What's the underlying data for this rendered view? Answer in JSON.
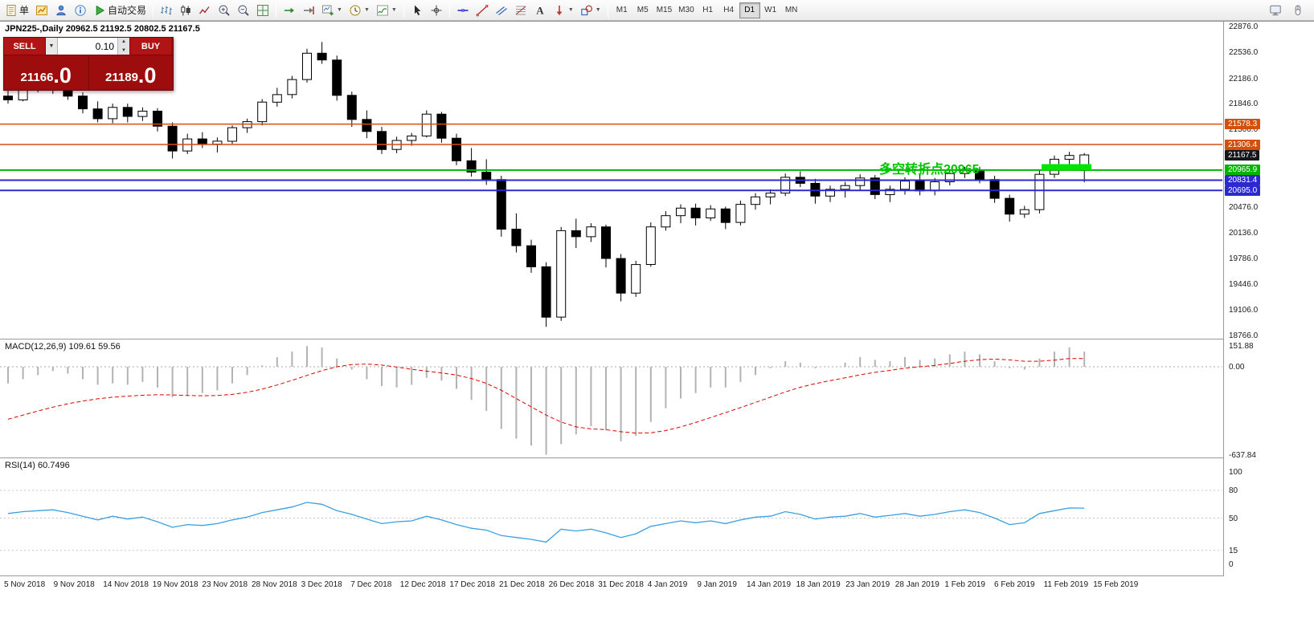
{
  "toolbar": {
    "groups": [
      {
        "name": "standard",
        "items": [
          {
            "name": "new-order",
            "icon": "doc",
            "label": "单"
          },
          {
            "name": "market-watch",
            "icon": "chart"
          },
          {
            "name": "navigator",
            "icon": "person"
          },
          {
            "name": "data-window",
            "icon": "info"
          },
          {
            "name": "autotrading",
            "icon": "play",
            "label": "自动交易"
          }
        ]
      },
      {
        "name": "chart-types",
        "items": [
          {
            "name": "bar-chart",
            "icon": "bars"
          },
          {
            "name": "candlestick-chart",
            "icon": "candles"
          },
          {
            "name": "line-chart",
            "icon": "linechart"
          },
          {
            "name": "zoom-in",
            "icon": "zoom-in"
          },
          {
            "name": "zoom-out",
            "icon": "zoom-out"
          },
          {
            "name": "tile-windows",
            "icon": "tile"
          }
        ]
      },
      {
        "name": "chart-tools",
        "items": [
          {
            "name": "auto-scroll",
            "icon": "arrange"
          },
          {
            "name": "chart-shift",
            "icon": "cascade"
          },
          {
            "name": "new-chart",
            "icon": "new-chart",
            "dropdown": true
          },
          {
            "name": "period-selector",
            "icon": "clock",
            "dropdown": true
          },
          {
            "name": "indicators-list",
            "icon": "indicator",
            "dropdown": true
          }
        ]
      },
      {
        "name": "pointer",
        "items": [
          {
            "name": "cursor",
            "icon": "cursor"
          },
          {
            "name": "crosshair",
            "icon": "crosshair"
          }
        ]
      },
      {
        "name": "line-studies",
        "items": [
          {
            "name": "horizontal-line",
            "icon": "hline"
          },
          {
            "name": "trendline",
            "icon": "trendline"
          },
          {
            "name": "equidistant-channel",
            "icon": "channel"
          },
          {
            "name": "fibonacci-retracement",
            "icon": "fibo"
          },
          {
            "name": "text-label",
            "icon": "text"
          },
          {
            "name": "arrow-objects",
            "icon": "arrow",
            "dropdown": true
          },
          {
            "name": "shape-objects",
            "icon": "shapes",
            "dropdown": true
          }
        ]
      }
    ],
    "timeframes": {
      "options": [
        "M1",
        "M5",
        "M15",
        "M30",
        "H1",
        "H4",
        "D1",
        "W1",
        "MN"
      ],
      "active": "D1"
    },
    "right_items": [
      {
        "name": "terminal",
        "icon": "monitor"
      },
      {
        "name": "mouse-settings",
        "icon": "hand"
      }
    ]
  },
  "trade_panel": {
    "sell_label": "SELL",
    "buy_label": "BUY",
    "lot": "0.10",
    "sell_price": "21166.0",
    "buy_price": "21189.0"
  },
  "chart": {
    "title": "JPN225-,Daily 20962.5 21192.5 20802.5 21167.5",
    "annotation": {
      "text": "多空转折点20965",
      "color": "#00c400"
    },
    "levels": [
      {
        "label": "21578.3",
        "value": 21578.3,
        "color": "#d4500a",
        "line": true,
        "width": 1.5
      },
      {
        "label": "21306.4",
        "value": 21306.4,
        "color": "#d4500a",
        "line": true,
        "width": 1.5
      },
      {
        "label": "21167.5",
        "value": 21167.5,
        "color": "#15161a",
        "line": false
      },
      {
        "label": "20965.9",
        "value": 20965.9,
        "color": "#00b400",
        "line": true,
        "width": 2
      },
      {
        "label": "20831.4",
        "value": 20831.4,
        "color": "#2a2ad0",
        "line": true,
        "width": 2
      },
      {
        "label": "20695.0",
        "value": 20695.0,
        "color": "#2a2ad0",
        "line": true,
        "width": 2
      }
    ],
    "highlight": {
      "price_top": 21045,
      "price_bottom": 20966,
      "color": "#00e400"
    }
  },
  "price_axis": {
    "ticks": [
      "22876.0",
      "22536.0",
      "22186.0",
      "21846.0",
      "21506.0",
      "20476.0",
      "20136.0",
      "19786.0",
      "19446.0",
      "19106.0",
      "18766.0"
    ]
  },
  "macd": {
    "label": "MACD(12,26,9) 109.61 59.56",
    "ticks": [
      {
        "v": 151.88,
        "label": "151.88"
      },
      {
        "v": 0,
        "label": "0.00"
      },
      {
        "v": -637.84,
        "label": "-637.84"
      }
    ]
  },
  "rsi": {
    "label": "RSI(14) 60.7496",
    "ticks": [
      {
        "v": 100,
        "label": "100"
      },
      {
        "v": 80,
        "label": "80"
      },
      {
        "v": 50,
        "label": "50"
      },
      {
        "v": 15,
        "label": "15"
      },
      {
        "v": 0,
        "label": "0"
      }
    ]
  },
  "time_axis": [
    "5 Nov 2018",
    "9 Nov 2018",
    "14 Nov 2018",
    "19 Nov 2018",
    "23 Nov 2018",
    "28 Nov 2018",
    "3 Dec 2018",
    "7 Dec 2018",
    "12 Dec 2018",
    "17 Dec 2018",
    "21 Dec 2018",
    "26 Dec 2018",
    "31 Dec 2018",
    "4 Jan 2019",
    "9 Jan 2019",
    "14 Jan 2019",
    "18 Jan 2019",
    "23 Jan 2019",
    "28 Jan 2019",
    "1 Feb 2019",
    "6 Feb 2019",
    "11 Feb 2019",
    "15 Feb 2019"
  ],
  "chart_data": [
    {
      "type": "candlestick",
      "title": "JPN225- Daily",
      "ylim": [
        18766,
        22876
      ],
      "o": [
        21950,
        21900,
        22080,
        22060,
        22130,
        21950,
        21780,
        21650,
        21800,
        21680,
        21750,
        21550,
        21220,
        21380,
        21310,
        21350,
        21530,
        21610,
        21870,
        21970,
        22170,
        22520,
        22430,
        21960,
        21640,
        21480,
        21240,
        21360,
        21420,
        21710,
        21390,
        21090,
        20940,
        20840,
        20180,
        19960,
        19680,
        19010,
        20160,
        20080,
        20210,
        19790,
        19330,
        19710,
        20210,
        20360,
        20460,
        20330,
        20450,
        20270,
        20510,
        20610,
        20660,
        20870,
        20790,
        20620,
        20710,
        20760,
        20860,
        20640,
        20710,
        20820,
        20690,
        20810,
        20920,
        20960,
        20840,
        20590,
        20380,
        20440,
        20910,
        21110,
        20962.5
      ],
      "h": [
        22020,
        22120,
        22180,
        22190,
        22170,
        22000,
        21880,
        21850,
        21850,
        21800,
        21790,
        21600,
        21450,
        21470,
        21400,
        21560,
        21650,
        21910,
        22060,
        22220,
        22580,
        22670,
        22490,
        22010,
        21760,
        21540,
        21410,
        21460,
        21760,
        21740,
        21450,
        21260,
        21110,
        20890,
        20390,
        20040,
        19740,
        20210,
        20320,
        20260,
        20240,
        19850,
        19760,
        20270,
        20420,
        20510,
        20520,
        20500,
        20480,
        20560,
        20660,
        20710,
        20920,
        20950,
        20850,
        20760,
        20810,
        20910,
        20900,
        20760,
        20870,
        20910,
        20860,
        20970,
        21010,
        21010,
        20890,
        20640,
        20490,
        20960,
        21160,
        21210,
        21192.5
      ],
      "l": [
        21850,
        21880,
        22000,
        21980,
        21900,
        21720,
        21600,
        21590,
        21600,
        21620,
        21480,
        21120,
        21180,
        21260,
        21200,
        21310,
        21460,
        21560,
        21810,
        21920,
        22130,
        22380,
        21890,
        21540,
        21390,
        21180,
        21190,
        21290,
        21400,
        21330,
        21030,
        20880,
        20770,
        20080,
        19870,
        19600,
        18880,
        18960,
        19930,
        20010,
        19670,
        19220,
        19280,
        19680,
        20160,
        20260,
        20230,
        20290,
        20180,
        20230,
        20440,
        20510,
        20620,
        20740,
        20520,
        20540,
        20600,
        20690,
        20580,
        20540,
        20640,
        20630,
        20630,
        20760,
        20860,
        20790,
        20530,
        20280,
        20330,
        20390,
        20860,
        21010,
        20802.5
      ],
      "c": [
        21900,
        22080,
        22060,
        22130,
        21950,
        21780,
        21650,
        21800,
        21680,
        21750,
        21550,
        21220,
        21380,
        21310,
        21350,
        21530,
        21610,
        21870,
        21970,
        22170,
        22520,
        22430,
        21960,
        21640,
        21480,
        21240,
        21360,
        21420,
        21710,
        21390,
        21090,
        20940,
        20840,
        20180,
        19960,
        19680,
        19010,
        20160,
        20080,
        20210,
        19790,
        19330,
        19710,
        20210,
        20360,
        20460,
        20330,
        20450,
        20270,
        20510,
        20610,
        20660,
        20870,
        20790,
        20620,
        20710,
        20760,
        20860,
        20640,
        20710,
        20820,
        20690,
        20810,
        20920,
        20960,
        20840,
        20590,
        20380,
        20440,
        20910,
        21110,
        21160,
        21167.5
      ]
    },
    {
      "type": "bar",
      "name": "MACD(12,26,9)",
      "ylim": [
        -637.84,
        151.88
      ],
      "main": [
        -120,
        -90,
        -60,
        -30,
        -50,
        -90,
        -130,
        -120,
        -130,
        -110,
        -150,
        -220,
        -210,
        -190,
        -170,
        -120,
        -60,
        10,
        70,
        110,
        150,
        140,
        60,
        -20,
        -90,
        -140,
        -150,
        -130,
        -80,
        -100,
        -160,
        -240,
        -320,
        -450,
        -520,
        -570,
        -637,
        -560,
        -490,
        -430,
        -460,
        -540,
        -500,
        -400,
        -300,
        -230,
        -190,
        -150,
        -150,
        -110,
        -60,
        -10,
        40,
        30,
        -10,
        0,
        30,
        70,
        50,
        40,
        70,
        50,
        60,
        90,
        110,
        90,
        40,
        -10,
        -20,
        60,
        110,
        140,
        109.61
      ],
      "signal": [
        -380,
        -350,
        -320,
        -292,
        -268,
        -248,
        -232,
        -220,
        -212,
        -206,
        -202,
        -204,
        -208,
        -210,
        -208,
        -200,
        -185,
        -162,
        -132,
        -98,
        -62,
        -28,
        0,
        16,
        20,
        12,
        -2,
        -18,
        -32,
        -44,
        -60,
        -85,
        -120,
        -170,
        -230,
        -290,
        -350,
        -400,
        -435,
        -450,
        -455,
        -470,
        -480,
        -478,
        -462,
        -435,
        -403,
        -368,
        -332,
        -296,
        -258,
        -220,
        -182,
        -148,
        -122,
        -100,
        -80,
        -58,
        -40,
        -26,
        -10,
        0,
        10,
        24,
        40,
        52,
        56,
        50,
        40,
        40,
        48,
        60,
        59.56
      ]
    },
    {
      "type": "line",
      "name": "RSI(14)",
      "ylim": [
        0,
        100
      ],
      "levels": [
        80,
        50,
        15
      ],
      "values": [
        55,
        57,
        58,
        59,
        56,
        52,
        48,
        52,
        49,
        51,
        46,
        40,
        43,
        42,
        44,
        48,
        51,
        56,
        59,
        62,
        67,
        65,
        58,
        54,
        49,
        44,
        46,
        47,
        52,
        48,
        43,
        39,
        37,
        31,
        29,
        27,
        24,
        38,
        36,
        38,
        34,
        29,
        33,
        41,
        44,
        47,
        45,
        47,
        44,
        48,
        51,
        52,
        57,
        54,
        49,
        51,
        52,
        55,
        51,
        53,
        55,
        52,
        54,
        57,
        59,
        56,
        50,
        43,
        45,
        55,
        58,
        61,
        60.7496
      ]
    }
  ]
}
